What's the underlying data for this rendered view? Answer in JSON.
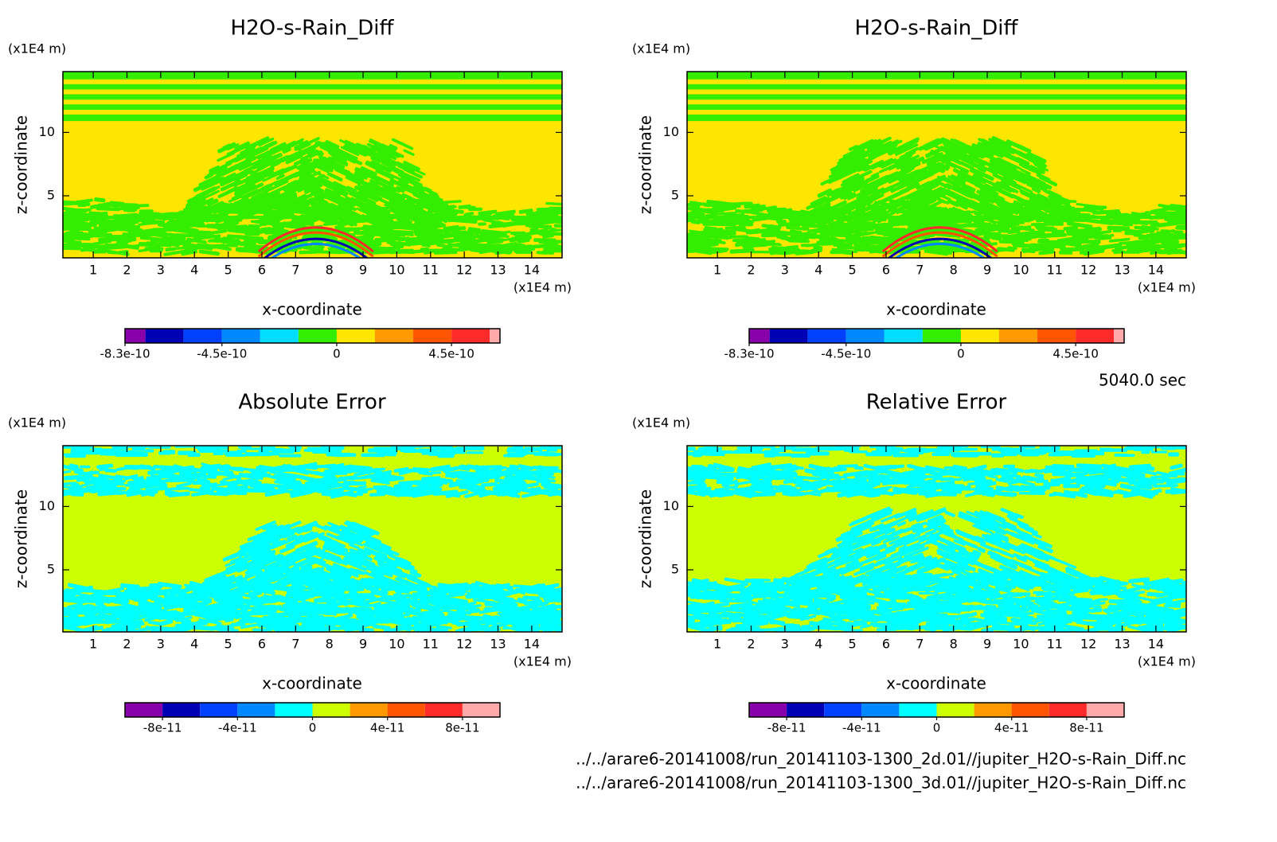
{
  "chart_data": [
    {
      "type": "contour",
      "title": "H2O-s-Rain_Diff",
      "x_label": "x-coordinate",
      "y_label": "z-coordinate",
      "x_unit": "(x1E4 m)",
      "y_unit": "(x1E4 m)",
      "xlim": [
        0.1,
        14.9
      ],
      "ylim": [
        0.1,
        14.8
      ],
      "xticks": [
        1,
        2,
        3,
        4,
        5,
        6,
        7,
        8,
        9,
        10,
        11,
        12,
        13,
        14
      ],
      "yticks": [
        5,
        10
      ],
      "colorbar": {
        "lim": [
          -8.3e-10,
          6.4e-10
        ],
        "levels": [
          -7.5e-10,
          -6e-10,
          -4.5e-10,
          -3e-10,
          -1.5e-10,
          0,
          1.5e-10,
          3e-10,
          4.5e-10,
          6e-10
        ],
        "colors": [
          "#8800aa",
          "#0000b4",
          "#0040ff",
          "#0088ff",
          "#00ddff",
          "#33ee00",
          "#ffe600",
          "#ff9900",
          "#ff5500",
          "#ff2a2a",
          "#ffaaaa"
        ],
        "ticks": [
          -8.3e-10,
          -4.5e-10,
          0,
          4.5e-10
        ]
      }
    },
    {
      "type": "contour",
      "title": "H2O-s-Rain_Diff",
      "x_label": "x-coordinate",
      "y_label": "z-coordinate",
      "x_unit": "(x1E4 m)",
      "y_unit": "(x1E4 m)",
      "xlim": [
        0.1,
        14.9
      ],
      "ylim": [
        0.1,
        14.8
      ],
      "xticks": [
        1,
        2,
        3,
        4,
        5,
        6,
        7,
        8,
        9,
        10,
        11,
        12,
        13,
        14
      ],
      "yticks": [
        5,
        10
      ],
      "colorbar": {
        "lim": [
          -8.3e-10,
          6.4e-10
        ],
        "levels": [
          -7.5e-10,
          -6e-10,
          -4.5e-10,
          -3e-10,
          -1.5e-10,
          0,
          1.5e-10,
          3e-10,
          4.5e-10,
          6e-10
        ],
        "colors": [
          "#8800aa",
          "#0000b4",
          "#0040ff",
          "#0088ff",
          "#00ddff",
          "#33ee00",
          "#ffe600",
          "#ff9900",
          "#ff5500",
          "#ff2a2a",
          "#ffaaaa"
        ],
        "ticks": [
          -8.3e-10,
          -4.5e-10,
          0,
          4.5e-10
        ]
      }
    },
    {
      "type": "contour",
      "title": "Absolute Error",
      "x_label": "x-coordinate",
      "y_label": "z-coordinate",
      "x_unit": "(x1E4 m)",
      "y_unit": "(x1E4 m)",
      "xlim": [
        0.1,
        14.9
      ],
      "ylim": [
        0.1,
        14.8
      ],
      "xticks": [
        1,
        2,
        3,
        4,
        5,
        6,
        7,
        8,
        9,
        10,
        11,
        12,
        13,
        14
      ],
      "yticks": [
        5,
        10
      ],
      "colorbar": {
        "lim": [
          -1e-10,
          1e-10
        ],
        "levels": [
          -8e-11,
          -6e-11,
          -4e-11,
          -2e-11,
          0,
          2e-11,
          4e-11,
          6e-11,
          8e-11
        ],
        "colors": [
          "#8800aa",
          "#0000b4",
          "#0040ff",
          "#0088ff",
          "#00ffff",
          "#ccff00",
          "#ff9900",
          "#ff5500",
          "#ff2a2a",
          "#ffaaaa"
        ],
        "ticks": [
          -8e-11,
          -4e-11,
          0,
          4e-11,
          8e-11
        ]
      }
    },
    {
      "type": "contour",
      "title": "Relative Error",
      "x_label": "x-coordinate",
      "y_label": "z-coordinate",
      "x_unit": "(x1E4 m)",
      "y_unit": "(x1E4 m)",
      "xlim": [
        0.1,
        14.9
      ],
      "ylim": [
        0.1,
        14.8
      ],
      "xticks": [
        1,
        2,
        3,
        4,
        5,
        6,
        7,
        8,
        9,
        10,
        11,
        12,
        13,
        14
      ],
      "yticks": [
        5,
        10
      ],
      "colorbar": {
        "lim": [
          -1e-10,
          1e-10
        ],
        "levels": [
          -8e-11,
          -6e-11,
          -4e-11,
          -2e-11,
          0,
          2e-11,
          4e-11,
          6e-11,
          8e-11
        ],
        "colors": [
          "#8800aa",
          "#0000b4",
          "#0040ff",
          "#0088ff",
          "#00ffff",
          "#ccff00",
          "#ff9900",
          "#ff5500",
          "#ff2a2a",
          "#ffaaaa"
        ],
        "ticks": [
          -8e-11,
          -4e-11,
          0,
          4e-11,
          8e-11
        ]
      }
    }
  ],
  "time_label": "5040.0 sec",
  "files": [
    "../../arare6-20141008/run_20141103-1300_2d.01//jupiter_H2O-s-Rain_Diff.nc",
    "../../arare6-20141008/run_20141103-1300_3d.01//jupiter_H2O-s-Rain_Diff.nc"
  ]
}
